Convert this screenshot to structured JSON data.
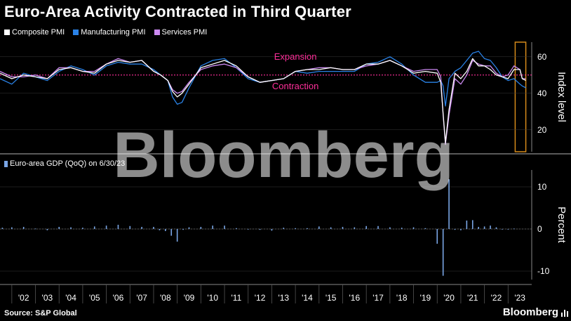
{
  "title": "Euro-Area Activity Contracted in Third Quarter",
  "source": "Source: S&P Global",
  "brand": "Bloomberg",
  "watermark": "Bloomberg",
  "colors": {
    "composite": "#ffffff",
    "manufacturing": "#2a82e6",
    "services": "#cc8af2",
    "gdp": "#7aa6e6",
    "threshold": "#ff2f9a",
    "highlight": "#d68a1a",
    "grid": "#3a3a3a"
  },
  "chart_data": [
    {
      "type": "line",
      "ylabel": "Index level",
      "ylim": [
        8,
        68
      ],
      "yticks": [
        20,
        40,
        60
      ],
      "annotations": {
        "above": "Expansion",
        "below": "Contraction",
        "threshold": 50
      },
      "x": [
        2001.5,
        2002.0,
        2002.5,
        2003.0,
        2003.5,
        2004.0,
        2004.5,
        2005.0,
        2005.5,
        2006.0,
        2006.5,
        2007.0,
        2007.5,
        2008.0,
        2008.3,
        2008.6,
        2008.8,
        2009.0,
        2009.2,
        2009.5,
        2010.0,
        2010.5,
        2011.0,
        2011.5,
        2012.0,
        2012.5,
        2013.0,
        2013.5,
        2014.0,
        2014.5,
        2015.0,
        2015.5,
        2016.0,
        2016.5,
        2017.0,
        2017.5,
        2018.0,
        2018.5,
        2019.0,
        2019.5,
        2020.0,
        2020.15,
        2020.25,
        2020.35,
        2020.5,
        2020.75,
        2021.0,
        2021.25,
        2021.5,
        2021.75,
        2022.0,
        2022.25,
        2022.5,
        2022.75,
        2023.0,
        2023.25,
        2023.5,
        2023.6,
        2023.75
      ],
      "series": [
        {
          "name": "Composite PMI",
          "values": [
            51,
            48,
            50,
            49,
            48,
            53,
            54,
            52,
            51,
            56,
            58,
            57,
            58,
            52,
            50,
            47,
            41,
            38,
            40,
            45,
            54,
            56,
            58,
            55,
            49,
            46,
            47,
            48,
            52,
            53,
            53,
            54,
            53,
            53,
            56,
            56,
            58,
            55,
            51,
            52,
            51,
            46,
            29,
            13,
            31,
            51,
            48,
            52,
            59,
            55,
            55,
            53,
            50,
            49,
            48,
            53,
            53,
            48,
            47
          ]
        },
        {
          "name": "Manufacturing PMI",
          "values": [
            48,
            45,
            51,
            49,
            47,
            52,
            55,
            53,
            50,
            55,
            57,
            56,
            56,
            53,
            50,
            47,
            38,
            34,
            35,
            43,
            55,
            58,
            59,
            54,
            48,
            46,
            47,
            48,
            52,
            51,
            52,
            52,
            52,
            52,
            56,
            57,
            60,
            56,
            50,
            46,
            46,
            47,
            44,
            33,
            48,
            52,
            54,
            58,
            62,
            63,
            59,
            58,
            54,
            49,
            47,
            48,
            45,
            44,
            43
          ]
        },
        {
          "name": "Services PMI",
          "values": [
            52,
            49,
            49,
            50,
            48,
            54,
            54,
            52,
            52,
            56,
            59,
            57,
            58,
            52,
            50,
            47,
            42,
            40,
            41,
            46,
            53,
            55,
            56,
            54,
            49,
            46,
            47,
            48,
            52,
            53,
            54,
            54,
            53,
            53,
            55,
            56,
            58,
            55,
            52,
            53,
            53,
            49,
            28,
            12,
            28,
            48,
            45,
            50,
            58,
            56,
            55,
            55,
            51,
            49,
            50,
            55,
            53,
            48,
            48
          ]
        }
      ]
    },
    {
      "type": "bar",
      "series_name": "Euro-area GDP (QoQ) on 6/30/23",
      "ylabel": "Percent",
      "ylim": [
        -12,
        14
      ],
      "yticks": [
        -10,
        0,
        10
      ],
      "xlim": [
        2001.5,
        2024.0
      ],
      "xtick_labels": [
        "'02",
        "'03",
        "'04",
        "'05",
        "'06",
        "'07",
        "'08",
        "'09",
        "'10",
        "'11",
        "'12",
        "'13",
        "'14",
        "'15",
        "'16",
        "'17",
        "'18",
        "'19",
        "'20",
        "'21",
        "'22",
        "'23"
      ],
      "x": [
        2001.6,
        2002.0,
        2002.5,
        2003.0,
        2003.5,
        2004.0,
        2004.5,
        2005.0,
        2005.5,
        2006.0,
        2006.5,
        2007.0,
        2007.5,
        2008.0,
        2008.25,
        2008.5,
        2008.75,
        2009.0,
        2009.25,
        2009.5,
        2010.0,
        2010.5,
        2011.0,
        2011.5,
        2012.0,
        2012.5,
        2013.0,
        2013.5,
        2014.0,
        2014.5,
        2015.0,
        2015.5,
        2016.0,
        2016.5,
        2017.0,
        2017.5,
        2018.0,
        2018.5,
        2019.0,
        2019.5,
        2020.0,
        2020.25,
        2020.5,
        2020.75,
        2021.0,
        2021.25,
        2021.5,
        2021.75,
        2022.0,
        2022.25,
        2022.5,
        2022.75,
        2023.0,
        2023.25
      ],
      "values": [
        0.3,
        0.4,
        0.5,
        0.1,
        -0.3,
        0.5,
        0.4,
        0.3,
        0.6,
        0.8,
        1.0,
        0.7,
        0.5,
        0.5,
        -0.3,
        -0.5,
        -1.6,
        -3.0,
        -0.2,
        0.4,
        0.5,
        0.8,
        0.8,
        0.2,
        -0.1,
        -0.2,
        -0.4,
        0.3,
        0.2,
        0.2,
        0.6,
        0.4,
        0.5,
        0.4,
        0.7,
        0.7,
        0.4,
        0.3,
        0.4,
        0.2,
        -3.5,
        -11.1,
        11.8,
        -0.2,
        -0.3,
        2.0,
        2.1,
        0.5,
        0.6,
        0.8,
        0.4,
        -0.1,
        0.0,
        0.1
      ]
    }
  ]
}
